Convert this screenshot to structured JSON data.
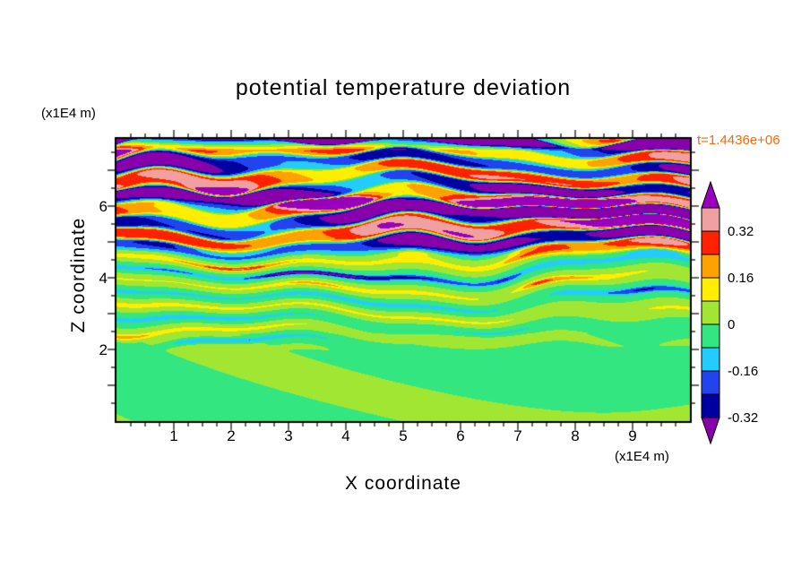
{
  "title": "potential temperature deviation",
  "time_label": "t=1.4436e+06",
  "annotation_color": "#ff6600",
  "axes": {
    "x_label": "X coordinate",
    "y_label": "Z coordinate",
    "x_unit": "(x1E4 m)",
    "y_unit": "(x1E4 m)"
  },
  "chart_data": {
    "type": "heatmap",
    "subtype": "filled-contour",
    "title": "potential temperature deviation",
    "xlabel": "X coordinate (x1E4 m)",
    "ylabel": "Z coordinate (x1E4 m)",
    "time_annotation": "t=1.4436e+06",
    "x_range": [
      0,
      10
    ],
    "z_range": [
      0,
      7.875
    ],
    "x_ticks": [
      1,
      2,
      3,
      4,
      5,
      6,
      7,
      8,
      9
    ],
    "y_ticks": [
      2,
      4,
      6
    ],
    "levels": [
      -0.32,
      -0.24,
      -0.16,
      -0.08,
      0,
      0.08,
      0.16,
      0.24,
      0.32,
      0.4
    ],
    "colors": [
      "#8800aa",
      "#0000a0",
      "#2244ee",
      "#22ccff",
      "#33e680",
      "#a0e632",
      "#ffee00",
      "#ffa200",
      "#ff2200",
      "#f0a0a0",
      "#9900bb"
    ],
    "colorbar_labels": [
      "0.32",
      "0.16",
      "0",
      "-0.16",
      "-0.32"
    ],
    "legend_position": "right",
    "grid": false,
    "description": "Turbulent, horizontally banded potential temperature deviation field. Strong alternating bands reaching beyond ±0.4 (salmon/red/purple/navy/cyan) between z≈4.5 and the top z≈7.9 with a dark purple strip at the very top edge; weaker thin yellow/cyan/navy streaks on a green background for 2<z<4.5; smooth near-zero two-tone green blobs below z≈2.",
    "structure": {
      "calm_layer_top": 2.0,
      "streak_layer_top": 4.5,
      "band_layer_top": 7.9,
      "amplitude_calm": 0.055,
      "amplitude_streaks": 0.15,
      "amplitude_bands": 0.5
    }
  }
}
